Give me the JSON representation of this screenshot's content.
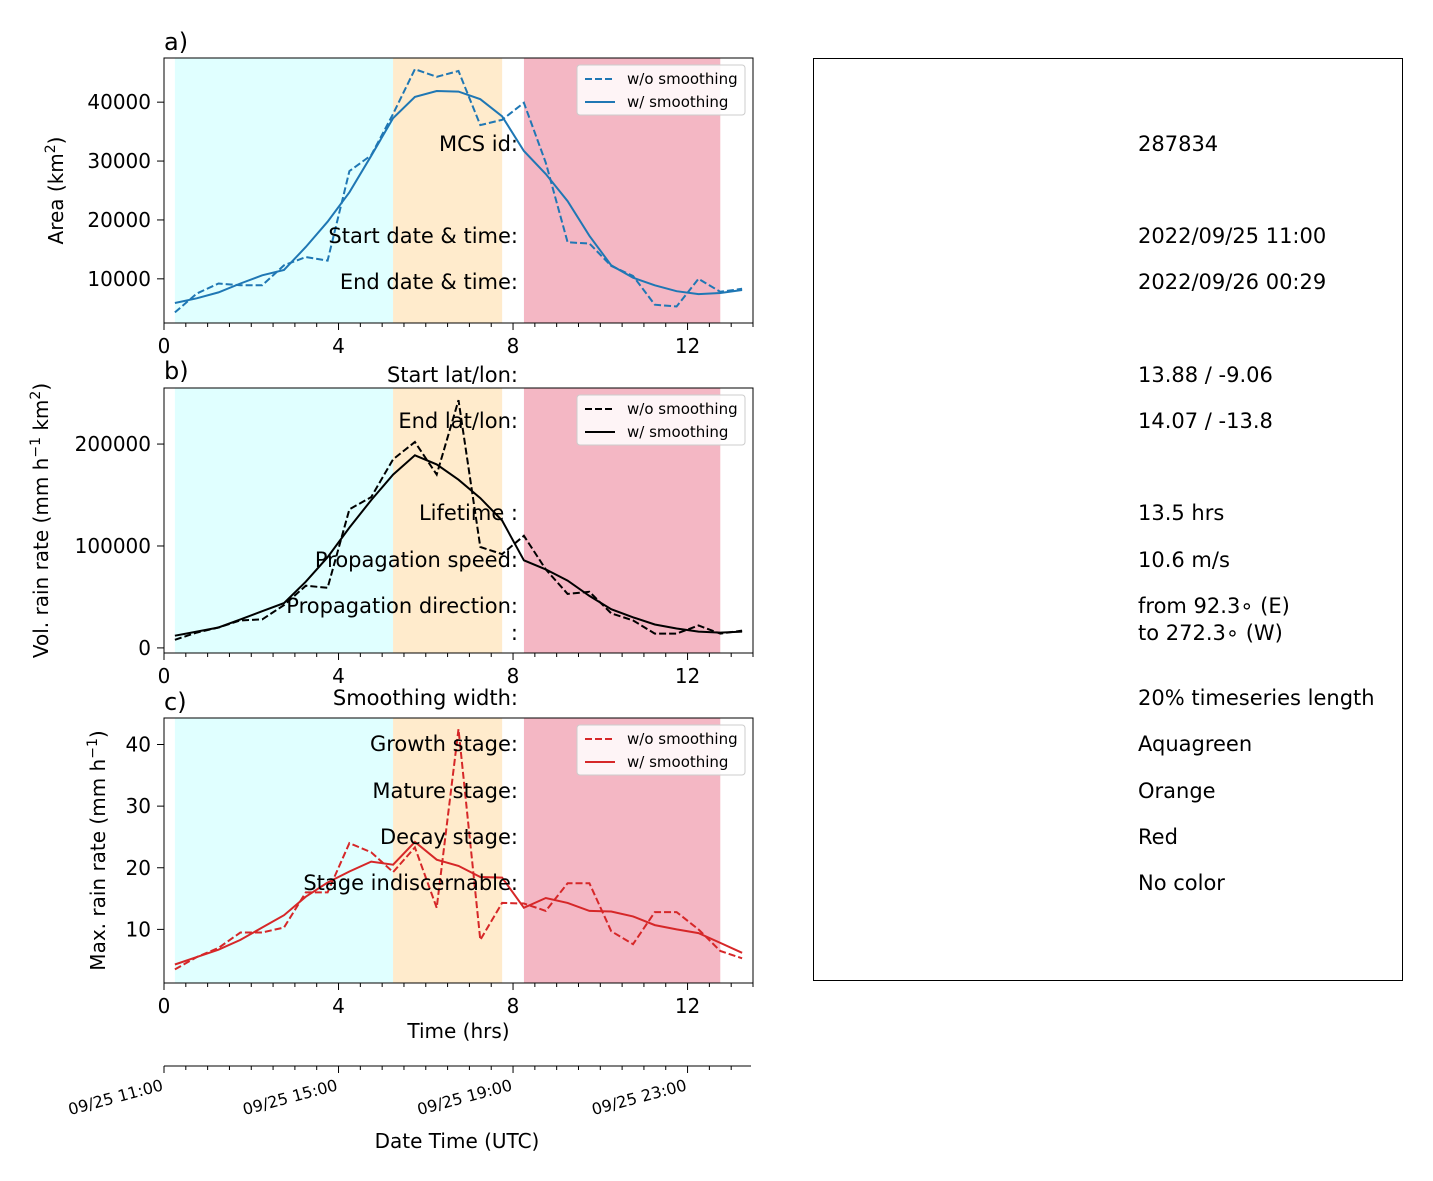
{
  "chart_data": [
    {
      "id": "a",
      "type": "line",
      "panel_label": "a)",
      "xlabel": "",
      "ylabel": "Area  (km²)",
      "xlim": [
        0,
        13.5
      ],
      "ylim": [
        2500,
        47500
      ],
      "yticks": [
        10000,
        20000,
        30000,
        40000
      ],
      "xticks": [
        0,
        4,
        8,
        12
      ],
      "stages": [
        {
          "name": "growth",
          "x": [
            0.25,
            5.25
          ],
          "color": "#e0ffff"
        },
        {
          "name": "mature",
          "x": [
            5.25,
            7.75
          ],
          "color": "#ffebcc"
        },
        {
          "name": "decay",
          "x": [
            8.25,
            12.75
          ],
          "color": "#f4b7c4"
        }
      ],
      "x": [
        0.25,
        0.75,
        1.25,
        1.75,
        2.25,
        2.75,
        3.25,
        3.75,
        4.25,
        4.75,
        5.25,
        5.75,
        6.25,
        6.75,
        7.25,
        7.75,
        8.25,
        8.75,
        9.25,
        9.75,
        10.25,
        10.75,
        11.25,
        11.75,
        12.25,
        12.75,
        13.25
      ],
      "series": [
        {
          "name": "w/o smoothing",
          "style": "dashed",
          "color": "#1f77b4",
          "values": [
            4300,
            7500,
            9200,
            8900,
            8900,
            12300,
            13700,
            13100,
            28300,
            31000,
            38000,
            45600,
            44300,
            45300,
            36100,
            37000,
            39900,
            29700,
            16200,
            16000,
            12200,
            10500,
            5600,
            5300,
            10000,
            7800,
            8300
          ]
        },
        {
          "name": "w/ smoothing",
          "style": "solid",
          "color": "#1f77b4",
          "values": [
            5900,
            6700,
            7700,
            9200,
            10600,
            11500,
            15400,
            19700,
            24700,
            30900,
            37300,
            40900,
            41900,
            41800,
            40500,
            37600,
            31700,
            27800,
            23200,
            17300,
            12300,
            10200,
            8900,
            7900,
            7400,
            7600,
            8100
          ]
        }
      ],
      "legend": "top-right"
    },
    {
      "id": "b",
      "type": "line",
      "panel_label": "b)",
      "xlabel": "",
      "ylabel": "Vol. rain rate (mm h⁻¹ km²)",
      "xlim": [
        0,
        13.5
      ],
      "ylim": [
        -5000,
        255000
      ],
      "yticks": [
        0,
        100000,
        200000
      ],
      "xticks": [
        0,
        4,
        8,
        12
      ],
      "stages": [
        {
          "name": "growth",
          "x": [
            0.25,
            5.25
          ],
          "color": "#e0ffff"
        },
        {
          "name": "mature",
          "x": [
            5.25,
            7.75
          ],
          "color": "#ffebcc"
        },
        {
          "name": "decay",
          "x": [
            8.25,
            12.75
          ],
          "color": "#f4b7c4"
        }
      ],
      "x": [
        0.25,
        0.75,
        1.25,
        1.75,
        2.25,
        2.75,
        3.25,
        3.75,
        4.25,
        4.75,
        5.25,
        5.75,
        6.25,
        6.75,
        7.25,
        7.75,
        8.25,
        8.75,
        9.25,
        9.75,
        10.25,
        10.75,
        11.25,
        11.75,
        12.25,
        12.75,
        13.25
      ],
      "series": [
        {
          "name": "w/o smoothing",
          "style": "dashed",
          "color": "#000000",
          "values": [
            8000,
            15000,
            20000,
            27000,
            28000,
            42000,
            61000,
            59000,
            136000,
            148000,
            185000,
            202000,
            170000,
            243000,
            99000,
            92000,
            110000,
            77000,
            53000,
            55000,
            34000,
            27000,
            14000,
            14000,
            22000,
            14000,
            17000
          ]
        },
        {
          "name": "w/ smoothing",
          "style": "solid",
          "color": "#000000",
          "values": [
            12000,
            16000,
            20000,
            28000,
            36000,
            44000,
            65000,
            89000,
            118000,
            145000,
            170000,
            189000,
            180000,
            165000,
            147000,
            125000,
            86000,
            77000,
            66000,
            51000,
            38000,
            30000,
            23000,
            19000,
            16000,
            15000,
            16000
          ]
        }
      ],
      "legend": "top-right"
    },
    {
      "id": "c",
      "type": "line",
      "panel_label": "c)",
      "xlabel": "Time (hrs)",
      "ylabel": "Max. rain rate  (mm h⁻¹)",
      "xlim": [
        0,
        13.5
      ],
      "ylim": [
        1.3,
        44.3
      ],
      "yticks": [
        10,
        20,
        30,
        40
      ],
      "xticks": [
        0,
        4,
        8,
        12
      ],
      "stages": [
        {
          "name": "growth",
          "x": [
            0.25,
            5.25
          ],
          "color": "#e0ffff"
        },
        {
          "name": "mature",
          "x": [
            5.25,
            7.75
          ],
          "color": "#ffebcc"
        },
        {
          "name": "decay",
          "x": [
            8.25,
            12.75
          ],
          "color": "#f4b7c4"
        }
      ],
      "x": [
        0.25,
        0.75,
        1.25,
        1.75,
        2.25,
        2.75,
        3.25,
        3.75,
        4.25,
        4.75,
        5.25,
        5.75,
        6.25,
        6.75,
        7.25,
        7.75,
        8.25,
        8.75,
        9.25,
        9.75,
        10.25,
        10.75,
        11.25,
        11.75,
        12.25,
        12.75,
        13.25
      ],
      "series": [
        {
          "name": "w/o smoothing",
          "style": "dashed",
          "color": "#d62728",
          "values": [
            3.5,
            5.5,
            7.0,
            9.5,
            9.5,
            10.3,
            16.0,
            16.0,
            24.0,
            22.5,
            19.3,
            23.3,
            13.5,
            42.5,
            8.3,
            14.3,
            14.2,
            13.0,
            17.5,
            17.5,
            9.7,
            7.6,
            12.8,
            12.8,
            10.0,
            6.5,
            5.3
          ]
        },
        {
          "name": "w/ smoothing",
          "style": "solid",
          "color": "#d62728",
          "values": [
            4.3,
            5.5,
            6.7,
            8.3,
            10.3,
            12.3,
            15.3,
            17.6,
            19.4,
            21.0,
            20.5,
            24.2,
            21.3,
            20.3,
            18.5,
            18.4,
            13.5,
            15.1,
            14.3,
            13.0,
            12.9,
            12.1,
            10.7,
            10.0,
            9.4,
            7.8,
            6.2
          ]
        }
      ],
      "legend": "top-right"
    }
  ],
  "datetime_axis": {
    "label": "Date Time (UTC)",
    "ticks": [
      {
        "x": 0,
        "label": "09/25 11:00"
      },
      {
        "x": 4,
        "label": "09/25 15:00"
      },
      {
        "x": 8,
        "label": "09/25 19:00"
      },
      {
        "x": 12,
        "label": "09/25 23:00"
      }
    ],
    "minor_step_hours": 0.5
  },
  "info": {
    "rows": [
      {
        "label": "MCS id:",
        "value": "287834"
      },
      {
        "label": "Start date & time:",
        "value": "2022/09/25 11:00"
      },
      {
        "label": "End date & time:",
        "value": "2022/09/26 00:29"
      },
      {
        "label": "Start lat/lon:",
        "value": "13.88 / -9.06"
      },
      {
        "label": "End lat/lon:",
        "value": "14.07 / -13.8"
      },
      {
        "label": "Lifetime :",
        "value": "13.5 hrs"
      },
      {
        "label": "Propagation speed:",
        "value": "10.6 m/s"
      },
      {
        "label": "Propagation direction:",
        "value": "from  92.3∘ (E)"
      },
      {
        "label": ":",
        "value": "to   272.3∘ (W)"
      },
      {
        "label": "Smoothing width:",
        "value": "20% timeseries length"
      },
      {
        "label": "Growth stage:",
        "value": "Aquagreen"
      },
      {
        "label": "Mature stage:",
        "value": "Orange"
      },
      {
        "label": "Decay stage:",
        "value": "Red"
      },
      {
        "label": "Stage indiscernable:",
        "value": "No color"
      }
    ]
  }
}
